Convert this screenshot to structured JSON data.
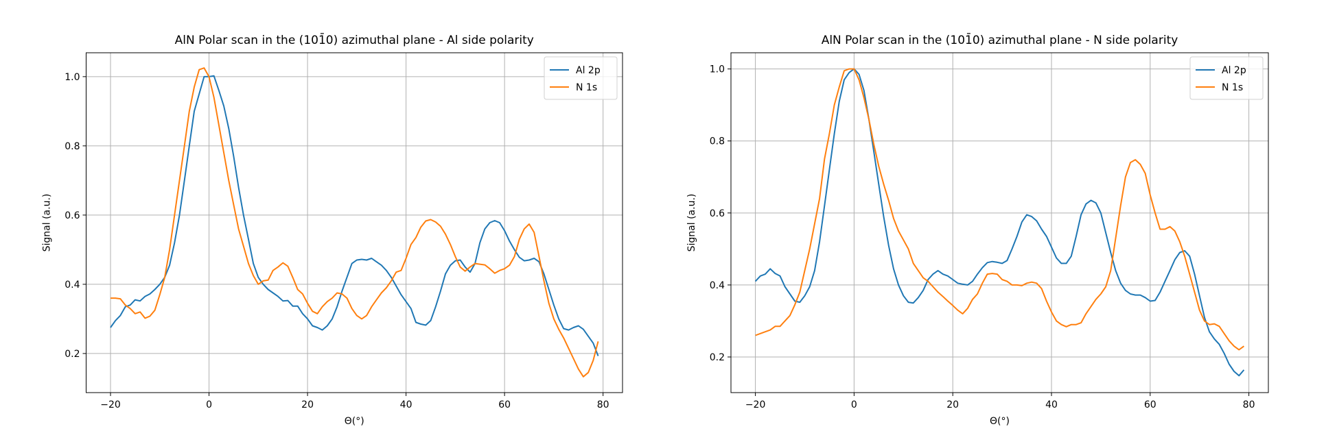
{
  "chart_data": [
    {
      "type": "line",
      "title": "AlN Polar scan in the (101̄0) azimuthal plane - Al side polarity",
      "xlabel": "Θ(°)",
      "ylabel": "Signal (a.u.)",
      "xlim": [
        -24.95,
        83.95
      ],
      "ylim": [
        0.087,
        1.069
      ],
      "xticks": [
        -20,
        0,
        20,
        40,
        60,
        80
      ],
      "xtick_labels": [
        "−20",
        "0",
        "20",
        "40",
        "60",
        "80"
      ],
      "yticks": [
        0.2,
        0.4,
        0.6,
        0.8,
        1.0
      ],
      "ytick_labels": [
        "0.2",
        "0.4",
        "0.6",
        "0.8",
        "1.0"
      ],
      "grid": true,
      "legend": "top-right",
      "x_start": -20,
      "x_step": 1,
      "series": [
        {
          "name": "Al 2p",
          "color": "#1f77b4",
          "values": [
            0.275,
            0.295,
            0.31,
            0.335,
            0.34,
            0.355,
            0.352,
            0.365,
            0.372,
            0.385,
            0.4,
            0.42,
            0.455,
            0.52,
            0.6,
            0.7,
            0.8,
            0.9,
            0.95,
            1.0,
            1.0,
            1.002,
            0.96,
            0.915,
            0.85,
            0.77,
            0.68,
            0.6,
            0.53,
            0.46,
            0.42,
            0.4,
            0.385,
            0.375,
            0.365,
            0.352,
            0.353,
            0.337,
            0.337,
            0.315,
            0.3,
            0.28,
            0.275,
            0.268,
            0.28,
            0.3,
            0.335,
            0.38,
            0.42,
            0.46,
            0.47,
            0.472,
            0.47,
            0.475,
            0.465,
            0.455,
            0.44,
            0.42,
            0.395,
            0.37,
            0.35,
            0.33,
            0.29,
            0.285,
            0.282,
            0.295,
            0.335,
            0.38,
            0.43,
            0.455,
            0.468,
            0.47,
            0.45,
            0.435,
            0.46,
            0.52,
            0.56,
            0.578,
            0.584,
            0.578,
            0.555,
            0.525,
            0.5,
            0.478,
            0.468,
            0.47,
            0.475,
            0.465,
            0.43,
            0.385,
            0.34,
            0.3,
            0.272,
            0.268,
            0.275,
            0.28,
            0.27,
            0.25,
            0.23,
            0.193
          ]
        },
        {
          "name": "N 1s",
          "color": "#ff7f0e",
          "values": [
            0.36,
            0.36,
            0.358,
            0.34,
            0.33,
            0.315,
            0.32,
            0.302,
            0.308,
            0.325,
            0.37,
            0.42,
            0.5,
            0.6,
            0.7,
            0.8,
            0.9,
            0.97,
            1.02,
            1.025,
            1.0,
            0.94,
            0.86,
            0.78,
            0.7,
            0.63,
            0.56,
            0.51,
            0.46,
            0.425,
            0.4,
            0.41,
            0.412,
            0.44,
            0.45,
            0.462,
            0.452,
            0.42,
            0.385,
            0.372,
            0.345,
            0.322,
            0.315,
            0.335,
            0.35,
            0.36,
            0.375,
            0.372,
            0.36,
            0.33,
            0.31,
            0.3,
            0.31,
            0.335,
            0.355,
            0.375,
            0.39,
            0.41,
            0.435,
            0.44,
            0.475,
            0.515,
            0.535,
            0.565,
            0.583,
            0.587,
            0.58,
            0.568,
            0.545,
            0.515,
            0.48,
            0.45,
            0.438,
            0.45,
            0.46,
            0.458,
            0.456,
            0.445,
            0.432,
            0.44,
            0.445,
            0.455,
            0.48,
            0.53,
            0.56,
            0.574,
            0.55,
            0.48,
            0.41,
            0.345,
            0.3,
            0.27,
            0.245,
            0.215,
            0.185,
            0.155,
            0.133,
            0.145,
            0.18,
            0.235
          ]
        }
      ]
    },
    {
      "type": "line",
      "title": "AlN Polar scan in the (101̄0) azimuthal plane - N side polarity",
      "xlabel": "Θ(°)",
      "ylabel": "Signal (a.u.)",
      "xlim": [
        -24.95,
        83.95
      ],
      "ylim": [
        0.101,
        1.045
      ],
      "xticks": [
        -20,
        0,
        20,
        40,
        60,
        80
      ],
      "xtick_labels": [
        "−20",
        "0",
        "20",
        "40",
        "60",
        "80"
      ],
      "yticks": [
        0.2,
        0.4,
        0.6,
        0.8,
        1.0
      ],
      "ytick_labels": [
        "0.2",
        "0.4",
        "0.6",
        "0.8",
        "1.0"
      ],
      "grid": true,
      "legend": "top-right",
      "x_start": -20,
      "x_step": 1,
      "series": [
        {
          "name": "Al 2p",
          "color": "#1f77b4",
          "values": [
            0.41,
            0.425,
            0.43,
            0.445,
            0.432,
            0.425,
            0.395,
            0.375,
            0.355,
            0.352,
            0.37,
            0.395,
            0.44,
            0.52,
            0.62,
            0.72,
            0.82,
            0.91,
            0.97,
            0.99,
            1.0,
            0.985,
            0.94,
            0.86,
            0.77,
            0.68,
            0.59,
            0.51,
            0.445,
            0.4,
            0.37,
            0.352,
            0.35,
            0.365,
            0.385,
            0.415,
            0.43,
            0.44,
            0.43,
            0.425,
            0.415,
            0.405,
            0.402,
            0.4,
            0.41,
            0.43,
            0.448,
            0.462,
            0.465,
            0.463,
            0.46,
            0.468,
            0.5,
            0.535,
            0.575,
            0.595,
            0.59,
            0.578,
            0.555,
            0.535,
            0.505,
            0.475,
            0.46,
            0.46,
            0.48,
            0.535,
            0.595,
            0.625,
            0.635,
            0.628,
            0.6,
            0.545,
            0.49,
            0.44,
            0.405,
            0.385,
            0.375,
            0.372,
            0.372,
            0.365,
            0.355,
            0.357,
            0.38,
            0.41,
            0.44,
            0.47,
            0.49,
            0.495,
            0.48,
            0.43,
            0.37,
            0.31,
            0.27,
            0.25,
            0.235,
            0.21,
            0.18,
            0.16,
            0.148,
            0.164
          ]
        },
        {
          "name": "N 1s",
          "color": "#ff7f0e",
          "values": [
            0.26,
            0.265,
            0.27,
            0.275,
            0.285,
            0.285,
            0.3,
            0.315,
            0.345,
            0.38,
            0.44,
            0.5,
            0.57,
            0.64,
            0.75,
            0.82,
            0.9,
            0.95,
            0.995,
            1.0,
            1.0,
            0.97,
            0.92,
            0.86,
            0.79,
            0.73,
            0.68,
            0.635,
            0.585,
            0.55,
            0.525,
            0.5,
            0.46,
            0.44,
            0.42,
            0.41,
            0.395,
            0.38,
            0.368,
            0.355,
            0.343,
            0.33,
            0.32,
            0.335,
            0.36,
            0.375,
            0.405,
            0.43,
            0.432,
            0.43,
            0.415,
            0.41,
            0.4,
            0.4,
            0.398,
            0.405,
            0.408,
            0.405,
            0.39,
            0.355,
            0.325,
            0.3,
            0.29,
            0.284,
            0.29,
            0.29,
            0.295,
            0.32,
            0.34,
            0.36,
            0.375,
            0.395,
            0.44,
            0.53,
            0.62,
            0.7,
            0.74,
            0.748,
            0.735,
            0.71,
            0.65,
            0.6,
            0.555,
            0.555,
            0.562,
            0.55,
            0.52,
            0.48,
            0.43,
            0.38,
            0.33,
            0.3,
            0.29,
            0.292,
            0.285,
            0.265,
            0.245,
            0.23,
            0.22,
            0.23
          ]
        }
      ]
    }
  ]
}
